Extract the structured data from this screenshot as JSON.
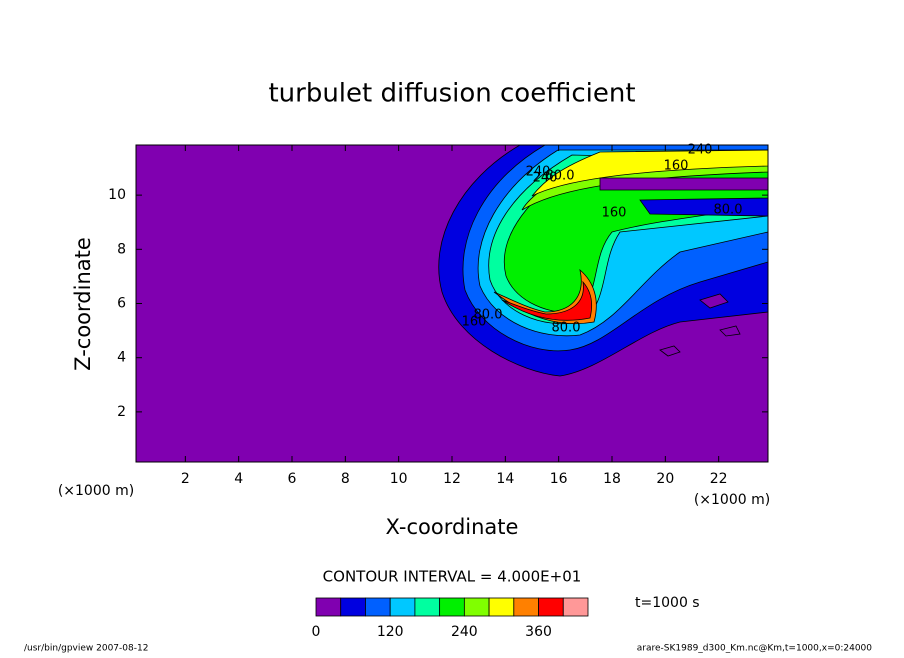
{
  "chart_data": {
    "type": "contour",
    "title": "turbulet diffusion coefficient",
    "x_label": "X-coordinate",
    "y_label": "Z-coordinate",
    "x_unit": "(×1000 m)",
    "y_unit": "(×1000 m)",
    "xlim": [
      0.15,
      23.85
    ],
    "ylim": [
      0.15,
      11.85
    ],
    "xticks": [
      2,
      4,
      6,
      8,
      10,
      12,
      14,
      16,
      18,
      20,
      22
    ],
    "yticks": [
      2,
      4,
      6,
      8,
      10
    ],
    "contour_interval": "CONTOUR INTERVAL = 4.000E+01",
    "contour_labels": [
      "240",
      "160",
      "80.0",
      "240",
      "80.0",
      "160",
      "80.0",
      "160",
      "80.0",
      "240"
    ],
    "colorbar": {
      "levels": [
        0,
        40,
        80,
        120,
        160,
        200,
        240,
        280,
        320,
        360,
        400,
        440
      ],
      "ticks": [
        0,
        120,
        240,
        360
      ],
      "colors": [
        "#8000b0",
        "#0000e0",
        "#0060ff",
        "#00c8ff",
        "#00ffa0",
        "#00f000",
        "#80ff00",
        "#ffff00",
        "#ff8000",
        "#ff0000",
        "#ff9898"
      ]
    },
    "time_label": "t=1000 s",
    "footer_left": "/usr/bin/gpview   2007-08-12",
    "footer_right": "arare-SK1989_d300_Km.nc@Km,t=1000,x=0:24000"
  }
}
